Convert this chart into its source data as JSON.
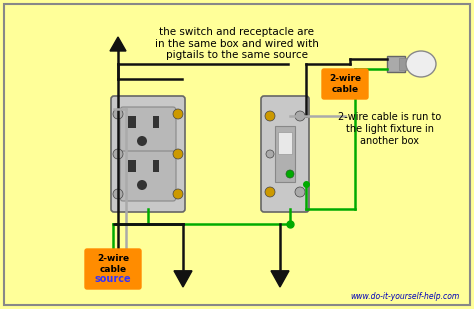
{
  "bg_color": "#FFFF99",
  "title_text": "the switch and receptacle are\nin the same box and wired with\npigtails to the same source",
  "label_2wire_cable1": "2-wire\ncable",
  "label_2wire_source": "2-wire\ncable\nsource",
  "label_2wire_cable2": "2-wire cable is run to\nthe light fixture in\nanother box",
  "website": "www.do-it-yourself-help.com",
  "wire_black": "#111111",
  "wire_white": "#AAAAAA",
  "wire_green": "#00AA00",
  "orange_label": "#FF8C00",
  "blue_text": "#0000BB",
  "source_blue": "#3333FF"
}
